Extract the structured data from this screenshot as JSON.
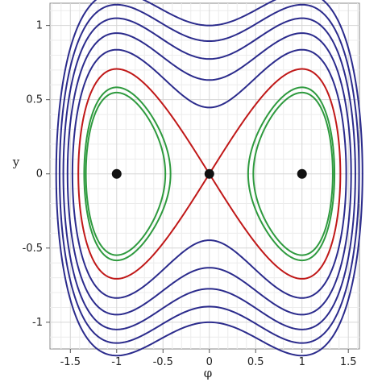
{
  "chart_data": {
    "type": "line",
    "title": "",
    "xlabel": "φ",
    "ylabel": "y",
    "xlim": [
      -1.72,
      1.62
    ],
    "ylim": [
      -1.18,
      1.15
    ],
    "grid": true,
    "legend": "none",
    "x_ticks": [
      {
        "value": -1.5,
        "label": "-1.5"
      },
      {
        "value": -1,
        "label": "-1"
      },
      {
        "value": -0.5,
        "label": "-0.5"
      },
      {
        "value": 0,
        "label": "0"
      },
      {
        "value": 0.5,
        "label": "0.5"
      },
      {
        "value": 1,
        "label": "1"
      },
      {
        "value": 1.5,
        "label": "1.5"
      }
    ],
    "y_ticks": [
      {
        "value": -1,
        "label": "-1"
      },
      {
        "value": -0.5,
        "label": "-0.5"
      },
      {
        "value": 0,
        "label": "0"
      },
      {
        "value": 0.5,
        "label": "0.5"
      },
      {
        "value": 1,
        "label": "1"
      }
    ],
    "level_curves": {
      "function": "H = y^2/2 - phi^2/2 + phi^4/4",
      "outer_levels": [
        0.1,
        0.2,
        0.3,
        0.4,
        0.5
      ],
      "separatrix_level": 0,
      "inner_levels": [
        -0.1,
        -0.08
      ],
      "colors": {
        "outer": "#2b2b8c",
        "separatrix": "#c01818",
        "inner": "#2e9a3e"
      }
    },
    "equilibria": [
      {
        "x": -1,
        "y": 0
      },
      {
        "x": 0,
        "y": 0
      },
      {
        "x": 1,
        "y": 0
      }
    ]
  }
}
